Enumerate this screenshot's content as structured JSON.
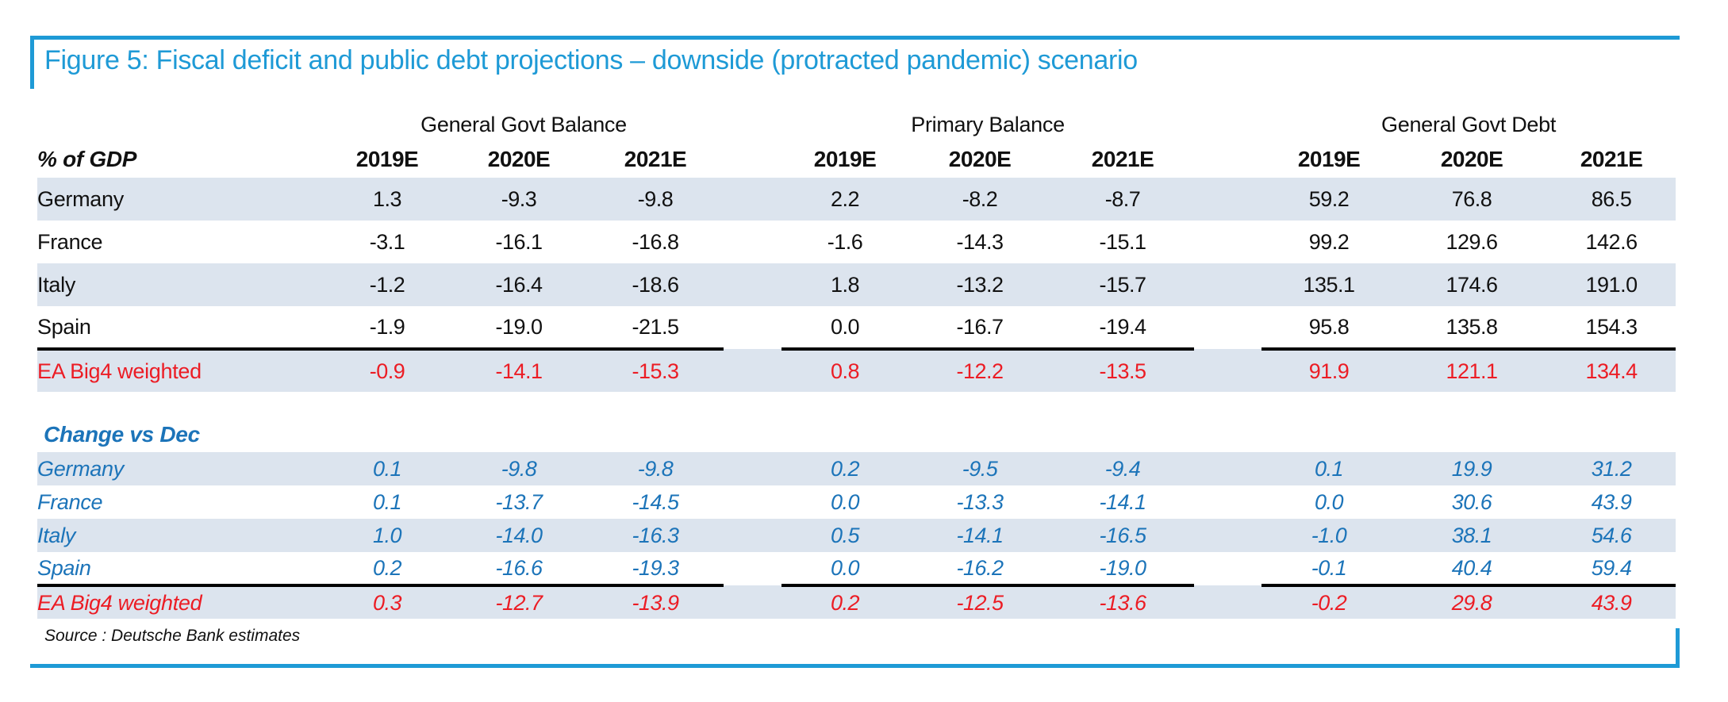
{
  "title": "Figure 5: Fiscal deficit and public debt projections – downside (protracted pandemic) scenario",
  "table": {
    "unit_label": "% of GDP",
    "column_groups": [
      "General Govt Balance",
      "Primary Balance",
      "General Govt Debt"
    ],
    "years": [
      "2019E",
      "2020E",
      "2021E"
    ],
    "levels": {
      "rows": [
        {
          "label": "Germany",
          "values": [
            "1.3",
            "-9.3",
            "-9.8",
            "2.2",
            "-8.2",
            "-8.7",
            "59.2",
            "76.8",
            "86.5"
          ]
        },
        {
          "label": "France",
          "values": [
            "-3.1",
            "-16.1",
            "-16.8",
            "-1.6",
            "-14.3",
            "-15.1",
            "99.2",
            "129.6",
            "142.6"
          ]
        },
        {
          "label": "Italy",
          "values": [
            "-1.2",
            "-16.4",
            "-18.6",
            "1.8",
            "-13.2",
            "-15.7",
            "135.1",
            "174.6",
            "191.0"
          ]
        },
        {
          "label": "Spain",
          "values": [
            "-1.9",
            "-19.0",
            "-21.5",
            "0.0",
            "-16.7",
            "-19.4",
            "95.8",
            "135.8",
            "154.3"
          ]
        }
      ],
      "total": {
        "label": "EA Big4 weighted",
        "values": [
          "-0.9",
          "-14.1",
          "-15.3",
          "0.8",
          "-12.2",
          "-13.5",
          "91.9",
          "121.1",
          "134.4"
        ]
      }
    },
    "change": {
      "heading": "Change vs Dec",
      "rows": [
        {
          "label": "Germany",
          "values": [
            "0.1",
            "-9.8",
            "-9.8",
            "0.2",
            "-9.5",
            "-9.4",
            "0.1",
            "19.9",
            "31.2"
          ]
        },
        {
          "label": "France",
          "values": [
            "0.1",
            "-13.7",
            "-14.5",
            "0.0",
            "-13.3",
            "-14.1",
            "0.0",
            "30.6",
            "43.9"
          ]
        },
        {
          "label": "Italy",
          "values": [
            "1.0",
            "-14.0",
            "-16.3",
            "0.5",
            "-14.1",
            "-16.5",
            "-1.0",
            "38.1",
            "54.6"
          ]
        },
        {
          "label": "Spain",
          "values": [
            "0.2",
            "-16.6",
            "-19.3",
            "0.0",
            "-16.2",
            "-19.0",
            "-0.1",
            "40.4",
            "59.4"
          ]
        }
      ],
      "total": {
        "label": "EA Big4 weighted",
        "values": [
          "0.3",
          "-12.7",
          "-13.9",
          "0.2",
          "-12.5",
          "-13.6",
          "-0.2",
          "29.8",
          "43.9"
        ]
      }
    }
  },
  "source": "Source : Deutsche Bank estimates",
  "colors": {
    "accent_blue": "#1E9AD6",
    "data_blue": "#1C74B9",
    "highlight_red": "#EC1C24",
    "row_band": "#DCE4EE",
    "text": "#111111"
  }
}
